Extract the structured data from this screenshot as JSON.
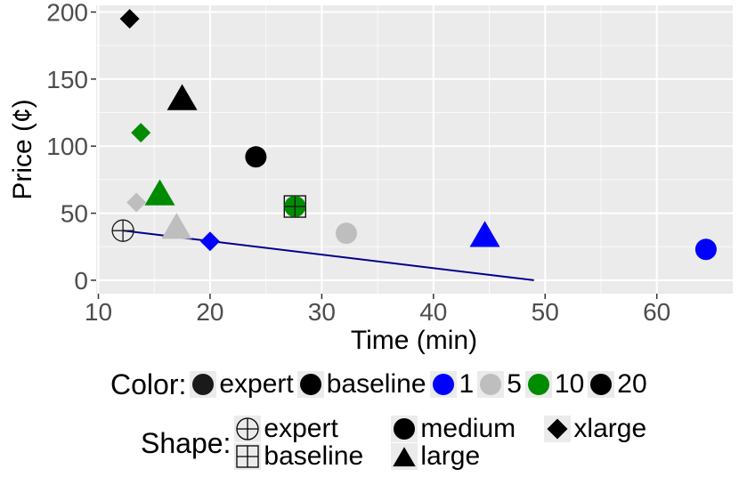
{
  "chart_data": {
    "type": "scatter",
    "title": "",
    "xlabel": "Time (min)",
    "ylabel": "Price (¢)",
    "xlim": [
      9.8,
      66.8
    ],
    "ylim": [
      -10,
      205
    ],
    "x_ticks": [
      10,
      20,
      30,
      40,
      50,
      60
    ],
    "y_ticks": [
      0,
      50,
      100,
      150,
      200
    ],
    "grid": true,
    "points": [
      {
        "color": "expert",
        "shape": "expert",
        "x": 12.2,
        "y": 37
      },
      {
        "color": "baseline",
        "shape": "baseline",
        "x": 27.6,
        "y": 55
      },
      {
        "color": "10",
        "shape": "medium",
        "x": 27.6,
        "y": 55
      },
      {
        "color": "1",
        "shape": "xlarge",
        "x": 20.0,
        "y": 29
      },
      {
        "color": "1",
        "shape": "large",
        "x": 44.6,
        "y": 33
      },
      {
        "color": "1",
        "shape": "medium",
        "x": 64.4,
        "y": 23
      },
      {
        "color": "5",
        "shape": "xlarge",
        "x": 13.4,
        "y": 58
      },
      {
        "color": "5",
        "shape": "large",
        "x": 17.0,
        "y": 39
      },
      {
        "color": "5",
        "shape": "medium",
        "x": 32.2,
        "y": 35
      },
      {
        "color": "10",
        "shape": "xlarge",
        "x": 13.8,
        "y": 110
      },
      {
        "color": "10",
        "shape": "large",
        "x": 15.5,
        "y": 64
      },
      {
        "color": "20",
        "shape": "xlarge",
        "x": 12.8,
        "y": 195
      },
      {
        "color": "20",
        "shape": "large",
        "x": 17.5,
        "y": 135
      },
      {
        "color": "20",
        "shape": "medium",
        "x": 24.1,
        "y": 92
      }
    ],
    "line": {
      "x": [
        12.2,
        49.0
      ],
      "y": [
        37,
        0
      ],
      "color": "#00008b"
    },
    "legend": {
      "color": {
        "title": "Color:",
        "entries": [
          {
            "label": "expert",
            "color": "#1a1a1a"
          },
          {
            "label": "baseline",
            "color": "#000000"
          },
          {
            "label": "1",
            "color": "#0000ff"
          },
          {
            "label": "5",
            "color": "#bebebe"
          },
          {
            "label": "10",
            "color": "#008b00"
          },
          {
            "label": "20",
            "color": "#000000"
          }
        ]
      },
      "shape": {
        "title": "Shape:",
        "entries": [
          {
            "label": "expert",
            "shape": "expert"
          },
          {
            "label": "medium",
            "shape": "medium"
          },
          {
            "label": "xlarge",
            "shape": "xlarge"
          },
          {
            "label": "baseline",
            "shape": "baseline"
          },
          {
            "label": "large",
            "shape": "large"
          }
        ]
      },
      "placement": "bottom"
    },
    "colors": {
      "panel": "#ebebeb",
      "grid": "#ffffff",
      "tick_text": "#4d4d4d"
    }
  }
}
